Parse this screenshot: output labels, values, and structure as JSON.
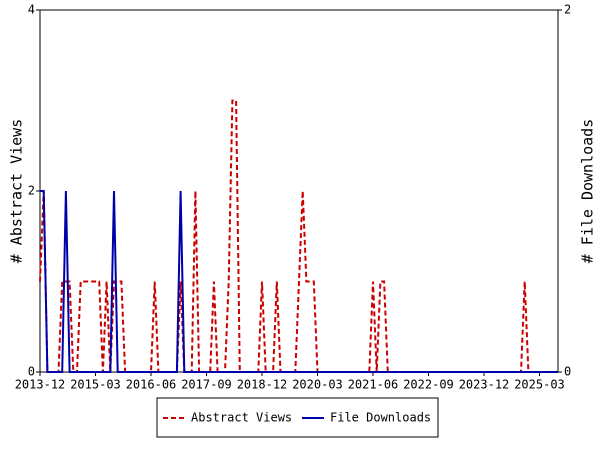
{
  "chart_data": {
    "type": "line",
    "x": [
      "2013-12",
      "2014-01",
      "2014-02",
      "2014-03",
      "2014-04",
      "2014-05",
      "2014-06",
      "2014-07",
      "2014-08",
      "2014-09",
      "2014-10",
      "2014-11",
      "2014-12",
      "2015-01",
      "2015-02",
      "2015-03",
      "2015-04",
      "2015-05",
      "2015-06",
      "2015-07",
      "2015-08",
      "2015-09",
      "2015-10",
      "2015-11",
      "2015-12",
      "2016-01",
      "2016-02",
      "2016-03",
      "2016-04",
      "2016-05",
      "2016-06",
      "2016-07",
      "2016-08",
      "2016-09",
      "2016-10",
      "2016-11",
      "2016-12",
      "2017-01",
      "2017-02",
      "2017-03",
      "2017-04",
      "2017-05",
      "2017-06",
      "2017-07",
      "2017-08",
      "2017-09",
      "2017-10",
      "2017-11",
      "2017-12",
      "2018-01",
      "2018-02",
      "2018-03",
      "2018-04",
      "2018-05",
      "2018-06",
      "2018-07",
      "2018-08",
      "2018-09",
      "2018-10",
      "2018-11",
      "2018-12",
      "2019-01",
      "2019-02",
      "2019-03",
      "2019-04",
      "2019-05",
      "2019-06",
      "2019-07",
      "2019-08",
      "2019-09",
      "2019-10",
      "2019-11",
      "2019-12",
      "2020-01",
      "2020-02",
      "2020-03",
      "2020-04",
      "2020-05",
      "2020-06",
      "2020-07",
      "2020-08",
      "2020-09",
      "2020-10",
      "2020-11",
      "2020-12",
      "2021-01",
      "2021-02",
      "2021-03",
      "2021-04",
      "2021-05",
      "2021-06",
      "2021-07",
      "2021-08",
      "2021-09",
      "2021-10",
      "2021-11",
      "2021-12",
      "2022-01",
      "2022-02",
      "2022-03",
      "2022-04",
      "2022-05",
      "2022-06",
      "2022-07",
      "2022-08",
      "2022-09",
      "2022-10",
      "2022-11",
      "2022-12",
      "2023-01",
      "2023-02",
      "2023-03",
      "2023-04",
      "2023-05",
      "2023-06",
      "2023-07",
      "2023-08",
      "2023-09",
      "2023-10",
      "2023-11",
      "2023-12",
      "2024-01",
      "2024-02",
      "2024-03",
      "2024-04",
      "2024-05",
      "2024-06",
      "2024-07",
      "2024-08",
      "2024-09",
      "2024-10",
      "2024-11",
      "2024-12",
      "2025-01",
      "2025-02",
      "2025-03",
      "2025-04",
      "2025-05",
      "2025-06",
      "2025-07",
      "2025-08"
    ],
    "xlim": [
      "2013-12",
      "2025-08"
    ],
    "xticks": [
      "2013-12",
      "2015-03",
      "2016-06",
      "2017-09",
      "2018-12",
      "2020-03",
      "2021-06",
      "2022-09",
      "2023-12",
      "2025-03"
    ],
    "ylabel": "# Abstract Views",
    "ylim": [
      0,
      4
    ],
    "yticks": [
      0,
      2,
      4
    ],
    "y2label": "# File Downloads",
    "y2lim": [
      0,
      2
    ],
    "y2ticks": [
      0,
      2
    ],
    "legend": "bottom",
    "series": [
      {
        "name": "Abstract Views",
        "color": "#cc0000",
        "dashed": true,
        "values": [
          1,
          2,
          0,
          0,
          0,
          0,
          1,
          1,
          1,
          0,
          0,
          1,
          1,
          1,
          1,
          1,
          1,
          0,
          1,
          0,
          1,
          1,
          1,
          0,
          0,
          0,
          0,
          0,
          0,
          0,
          0,
          1,
          0,
          0,
          0,
          0,
          0,
          0,
          1,
          0,
          0,
          0,
          2,
          0,
          0,
          0,
          0,
          1,
          0,
          0,
          0,
          1,
          3,
          3,
          0,
          0,
          0,
          0,
          0,
          0,
          1,
          0,
          0,
          0,
          1,
          0,
          0,
          0,
          0,
          0,
          1,
          2,
          1,
          1,
          1,
          0,
          0,
          0,
          0,
          0,
          0,
          0,
          0,
          0,
          0,
          0,
          0,
          0,
          0,
          0,
          1,
          0,
          1,
          1,
          0,
          0,
          0,
          0,
          0,
          0,
          0,
          0,
          0,
          0,
          0,
          0,
          0,
          0,
          0,
          0,
          0,
          0,
          0,
          0,
          0,
          0,
          0,
          0,
          0,
          0,
          0,
          0,
          0,
          0,
          0,
          0,
          0,
          0,
          0,
          0,
          0,
          1,
          0,
          0,
          0,
          0,
          0,
          0,
          0,
          0,
          0
        ]
      },
      {
        "name": "File Downloads",
        "color": "#0000aa",
        "dashed": false,
        "axis": "y2",
        "values": [
          1,
          1,
          0,
          0,
          0,
          0,
          0,
          1,
          0,
          0,
          0,
          0,
          0,
          0,
          0,
          0,
          0,
          0,
          0,
          0,
          1,
          0,
          0,
          0,
          0,
          0,
          0,
          0,
          0,
          0,
          0,
          0,
          0,
          0,
          0,
          0,
          0,
          0,
          1,
          0,
          0,
          0,
          0,
          0,
          0,
          0,
          0,
          0,
          0,
          0,
          0,
          0,
          0,
          0,
          0,
          0,
          0,
          0,
          0,
          0,
          0,
          0,
          0,
          0,
          0,
          0,
          0,
          0,
          0,
          0,
          0,
          0,
          0,
          0,
          0,
          0,
          0,
          0,
          0,
          0,
          0,
          0,
          0,
          0,
          0,
          0,
          0,
          0,
          0,
          0,
          0,
          0,
          0,
          0,
          0,
          0,
          0,
          0,
          0,
          0,
          0,
          0,
          0,
          0,
          0,
          0,
          0,
          0,
          0,
          0,
          0,
          0,
          0,
          0,
          0,
          0,
          0,
          0,
          0,
          0,
          0,
          0,
          0,
          0,
          0,
          0,
          0,
          0,
          0,
          0,
          0,
          0,
          0,
          0,
          0,
          0,
          0,
          0,
          0,
          0,
          0
        ]
      }
    ]
  }
}
